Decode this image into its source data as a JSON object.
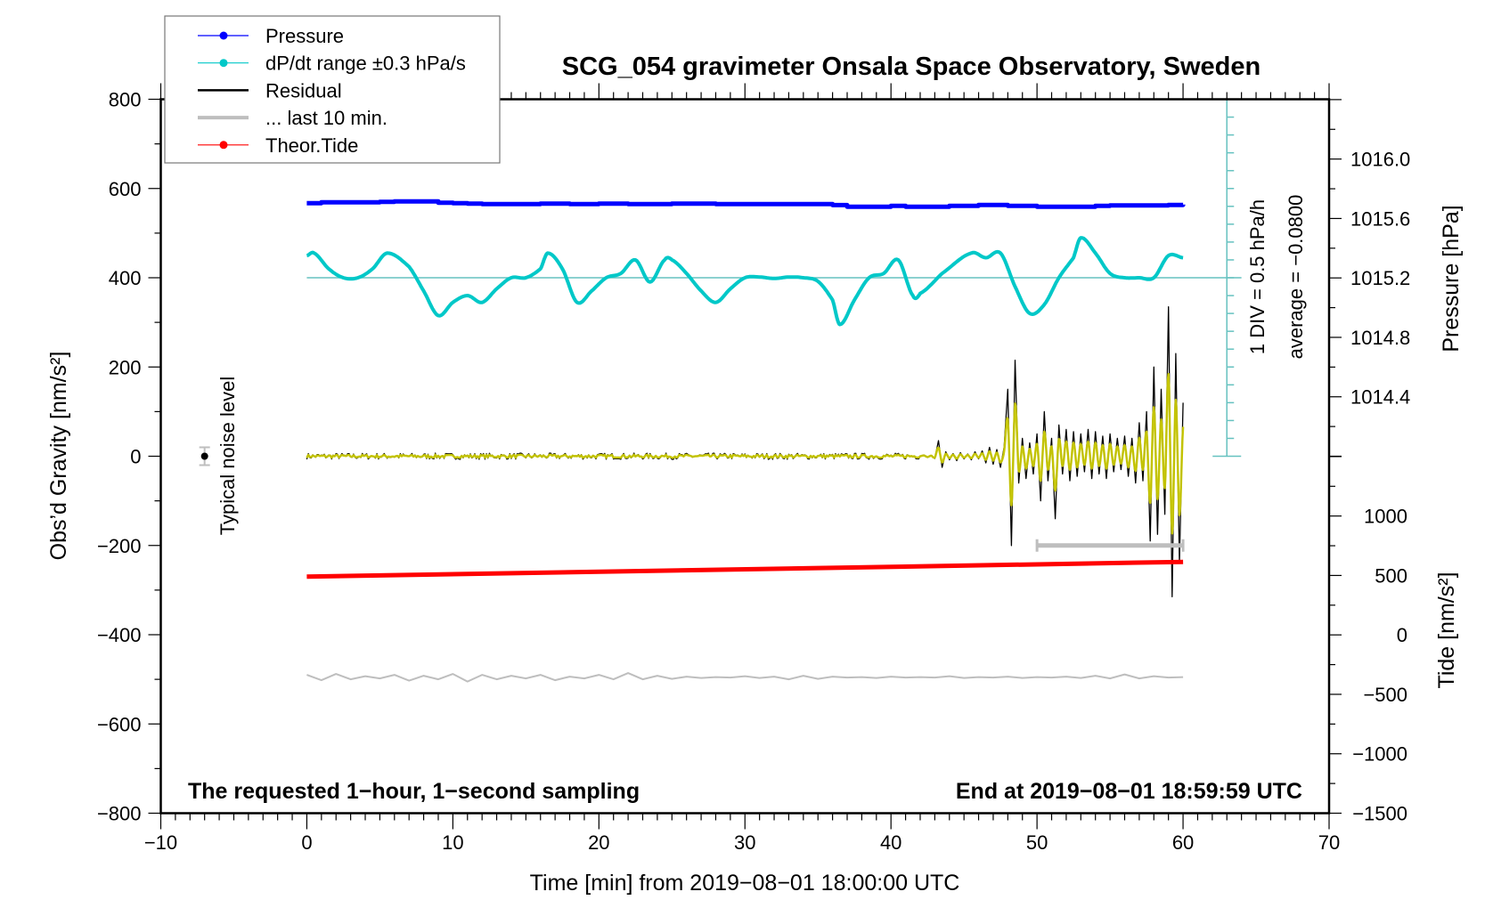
{
  "chart_data": {
    "type": "line",
    "title": "SCG_054 gravimeter Onsala Space Observatory, Sweden",
    "xlabel": "Time [min] from 2019−08−01 18:00:00 UTC",
    "ylabel": "Obs’d Gravity [nm/s²]",
    "ylabel_right_top": "Pressure [hPa]",
    "ylabel_right_bottom": "Tide [nm/s²]",
    "xlim": [
      -10,
      70
    ],
    "ylim": [
      -800,
      800
    ],
    "x_ticks": [
      "−10",
      "0",
      "10",
      "20",
      "30",
      "40",
      "50",
      "60",
      "70"
    ],
    "x_tick_values": [
      -10,
      0,
      10,
      20,
      30,
      40,
      50,
      60,
      70
    ],
    "y_ticks": [
      "800",
      "600",
      "400",
      "200",
      "0",
      "−200",
      "−400",
      "−600",
      "−800"
    ],
    "y_tick_values": [
      800,
      600,
      400,
      200,
      0,
      -200,
      -400,
      -600,
      -800
    ],
    "pressure_ticks": [
      "1016.0",
      "1015.6",
      "1015.2",
      "1014.8",
      "1014.4"
    ],
    "pressure_tick_values": [
      1016.0,
      1015.6,
      1015.2,
      1014.8,
      1014.4
    ],
    "tide_ticks": [
      "1000",
      "500",
      "0",
      "−500",
      "−1000",
      "−1500"
    ],
    "tide_tick_values": [
      1000,
      500,
      0,
      -500,
      -1000,
      -1500
    ],
    "legend": {
      "placement": "top-left",
      "entries": [
        {
          "label": "Pressure",
          "color": "#0000ff",
          "marker": true
        },
        {
          "label": "dP/dt range ±0.3 hPa/s",
          "color": "#00c8c8",
          "marker": true
        },
        {
          "label": "Residual",
          "color": "#000000",
          "marker": false
        },
        {
          "label": "... last 10 min.",
          "color": "#bebebe",
          "marker": false
        },
        {
          "label": "Theor.Tide",
          "color": "#ff0000",
          "marker": true
        }
      ]
    },
    "annotations": {
      "noise_label": "Typical noise level",
      "scale_label": "1 DIV = 0.5 hPa/h",
      "average_label": "average = −0.0800",
      "bottom_left": "The requested 1−hour, 1−second sampling",
      "bottom_right": "End at 2019−08−01 18:59:59 UTC"
    },
    "colors": {
      "pressure": "#0000ff",
      "dpdt": "#00c8c8",
      "dpdt_ref": "#66c2c0",
      "residual": "#000000",
      "filtered": "#c8c800",
      "last10": "#bebebe",
      "tide": "#ff0000"
    },
    "series": {
      "pressure_hPa": {
        "t": [
          0,
          1,
          2,
          3,
          4,
          5,
          6,
          7,
          8,
          9,
          10,
          11,
          12,
          13,
          14,
          15,
          16,
          17,
          18,
          19,
          20,
          21,
          22,
          23,
          24,
          25,
          26,
          27,
          28,
          29,
          30,
          31,
          32,
          33,
          34,
          35,
          36,
          37,
          38,
          39,
          40,
          41,
          42,
          43,
          44,
          45,
          46,
          47,
          48,
          49,
          50,
          51,
          52,
          53,
          54,
          55,
          56,
          57,
          58,
          59,
          60
        ],
        "v": [
          1015.703,
          1015.709,
          1015.709,
          1015.709,
          1015.709,
          1015.712,
          1015.715,
          1015.715,
          1015.715,
          1015.706,
          1015.703,
          1015.7,
          1015.697,
          1015.697,
          1015.697,
          1015.697,
          1015.7,
          1015.7,
          1015.697,
          1015.697,
          1015.7,
          1015.7,
          1015.697,
          1015.697,
          1015.697,
          1015.7,
          1015.7,
          1015.7,
          1015.697,
          1015.697,
          1015.697,
          1015.697,
          1015.697,
          1015.697,
          1015.697,
          1015.697,
          1015.69,
          1015.679,
          1015.679,
          1015.679,
          1015.685,
          1015.679,
          1015.679,
          1015.679,
          1015.685,
          1015.685,
          1015.691,
          1015.691,
          1015.685,
          1015.685,
          1015.679,
          1015.679,
          1015.679,
          1015.679,
          1015.685,
          1015.688,
          1015.688,
          1015.688,
          1015.688,
          1015.691,
          1015.694
        ]
      },
      "dpdt_hPa_per_h": {
        "t": [
          0,
          0.5,
          1.5,
          2.5,
          3.5,
          4.5,
          5.5,
          7,
          8,
          9,
          10,
          11,
          12,
          13,
          14,
          15,
          16,
          16.5,
          17.5,
          18.5,
          19.5,
          20.5,
          21.5,
          22.5,
          23.5,
          24.5,
          25,
          26,
          27,
          28,
          29,
          30,
          31,
          32,
          33,
          34,
          35,
          36,
          36.5,
          37.5,
          38.5,
          39.5,
          40.5,
          41.5,
          42,
          43.5,
          45.5,
          46.5,
          47.5,
          48.5,
          49.5,
          50.5,
          51.5,
          52.5,
          53,
          54,
          55,
          56,
          57,
          58,
          59,
          60
        ],
        "v": [
          0.62,
          0.69,
          0.25,
          0.0,
          0.0,
          0.25,
          0.69,
          0.31,
          -0.37,
          -1.06,
          -0.69,
          -0.5,
          -0.69,
          -0.31,
          0.0,
          0.0,
          0.25,
          0.69,
          0.25,
          -0.69,
          -0.37,
          0.0,
          0.12,
          0.5,
          -0.12,
          0.5,
          0.5,
          0.12,
          -0.37,
          -0.69,
          -0.31,
          0.0,
          0.02,
          -0.02,
          0.02,
          0.0,
          -0.1,
          -0.62,
          -1.31,
          -0.62,
          0.0,
          0.12,
          0.5,
          -0.5,
          -0.44,
          0.12,
          0.69,
          0.56,
          0.69,
          -0.25,
          -1.0,
          -0.75,
          0.0,
          0.56,
          1.12,
          0.69,
          0.12,
          0.0,
          0.0,
          0.0,
          0.62,
          0.56
        ]
      },
      "residual_nm_s2": {
        "pre_event_noise_amplitude": 7,
        "t_start": 42,
        "t_step": 0.25,
        "v": [
          0,
          3,
          -3,
          2,
          -5,
          35,
          -25,
          10,
          -8,
          6,
          -10,
          8,
          -6,
          5,
          -8,
          10,
          -6,
          12,
          -15,
          20,
          -18,
          15,
          -25,
          20,
          150,
          -200,
          215,
          -60,
          40,
          -50,
          30,
          -40,
          50,
          -100,
          100,
          -55,
          40,
          -140,
          70,
          -40,
          60,
          -55,
          55,
          -45,
          50,
          -35,
          60,
          -50,
          55,
          -40,
          45,
          -50,
          50,
          -35,
          40,
          -30,
          45,
          -45,
          40,
          -60,
          75,
          -55,
          100,
          -190,
          200,
          -175,
          150,
          -130,
          335,
          -315,
          230,
          -240,
          120
        ]
      },
      "last_10_min_nm_s2": {
        "t": [
          0,
          1,
          2,
          3,
          4,
          5,
          6,
          7,
          8,
          9,
          10,
          11,
          12,
          13,
          14,
          15,
          16,
          17,
          18,
          19,
          20,
          21,
          22,
          23,
          24,
          25,
          26,
          27,
          28,
          29,
          30,
          31,
          32,
          33,
          34,
          35,
          36,
          37,
          38,
          39,
          40,
          41,
          42,
          43,
          44,
          45,
          46,
          47,
          48,
          49,
          50,
          51,
          52,
          53,
          54,
          55,
          56,
          57,
          58,
          59,
          60
        ],
        "v": [
          -490,
          -502,
          -488,
          -500,
          -493,
          -498,
          -490,
          -503,
          -492,
          -500,
          -488,
          -505,
          -490,
          -500,
          -492,
          -498,
          -490,
          -502,
          -494,
          -498,
          -490,
          -500,
          -486,
          -500,
          -492,
          -499,
          -494,
          -497,
          -495,
          -496,
          -493,
          -497,
          -494,
          -500,
          -492,
          -499,
          -494,
          -496,
          -495,
          -497,
          -494,
          -496,
          -495,
          -496,
          -493,
          -497,
          -495,
          -496,
          -494,
          -497,
          -495,
          -496,
          -494,
          -497,
          -492,
          -498,
          -489,
          -498,
          -493,
          -496,
          -495
        ]
      },
      "tide_nm_s2": {
        "t": [
          0,
          60
        ],
        "v": [
          490,
          614
        ]
      },
      "noise_level": {
        "t": -7,
        "value": 0,
        "error": 20
      },
      "last_10_min_window": {
        "t": [
          50,
          60
        ],
        "value": -200
      },
      "dpdt_reference_level": 400,
      "dpdt_scale_per_div_hPa_h": 0.5
    }
  }
}
